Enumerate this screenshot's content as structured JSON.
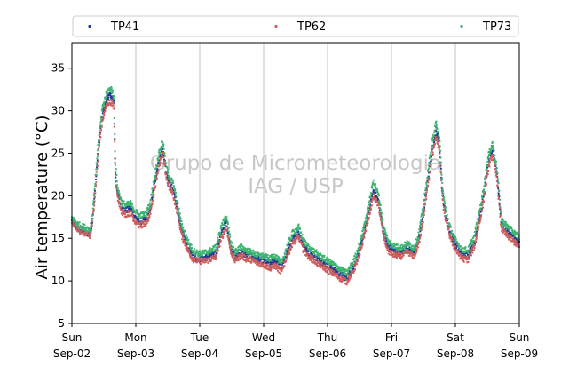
{
  "chart_data": {
    "type": "scatter",
    "ylabel": "Air temperature (°C)",
    "xlabel": "",
    "ylim": [
      5,
      38
    ],
    "yticks": [
      5,
      10,
      15,
      20,
      25,
      30,
      35
    ],
    "x_range": [
      "Sep-02 00:00",
      "Sep-09 00:00"
    ],
    "x_ticks": [
      {
        "day": "Sun",
        "date": "Sep-02"
      },
      {
        "day": "Mon",
        "date": "Sep-03"
      },
      {
        "day": "Tue",
        "date": "Sep-04"
      },
      {
        "day": "Wed",
        "date": "Sep-05"
      },
      {
        "day": "Thu",
        "date": "Sep-06"
      },
      {
        "day": "Fri",
        "date": "Sep-07"
      },
      {
        "day": "Sat",
        "date": "Sep-08"
      },
      {
        "day": "Sun",
        "date": "Sep-09"
      }
    ],
    "grid": "vertical lines at day ticks",
    "legend_placement": "top, above plot",
    "watermark": [
      "Grupo de Micrometeorologia",
      "IAG / USP"
    ],
    "x_unit_note": "x values are fractional days from Sep-02 00:00",
    "profile_TP41": [
      [
        0,
        17.0
      ],
      [
        0.1,
        16.1
      ],
      [
        0.2,
        15.8
      ],
      [
        0.28,
        15.4
      ],
      [
        0.32,
        17.0
      ],
      [
        0.36,
        20.5
      ],
      [
        0.42,
        26
      ],
      [
        0.48,
        29.5
      ],
      [
        0.55,
        31.6
      ],
      [
        0.62,
        31.8
      ],
      [
        0.66,
        30.8
      ],
      [
        0.68,
        22.5
      ],
      [
        0.72,
        20.2
      ],
      [
        0.78,
        18.6
      ],
      [
        0.85,
        18.3
      ],
      [
        0.92,
        18.5
      ],
      [
        0.98,
        17.6
      ],
      [
        1.05,
        17.0
      ],
      [
        1.15,
        17.1
      ],
      [
        1.22,
        18.2
      ],
      [
        1.28,
        20.8
      ],
      [
        1.35,
        23.8
      ],
      [
        1.42,
        25.6
      ],
      [
        1.48,
        22.5
      ],
      [
        1.52,
        21.6
      ],
      [
        1.58,
        20.8
      ],
      [
        1.65,
        18.5
      ],
      [
        1.72,
        15.8
      ],
      [
        1.82,
        14.0
      ],
      [
        1.9,
        12.9
      ],
      [
        2.0,
        12.6
      ],
      [
        2.12,
        12.8
      ],
      [
        2.25,
        13.2
      ],
      [
        2.35,
        15.8
      ],
      [
        2.42,
        17.0
      ],
      [
        2.48,
        14.0
      ],
      [
        2.55,
        12.8
      ],
      [
        2.65,
        13.4
      ],
      [
        2.72,
        13.0
      ],
      [
        2.8,
        12.9
      ],
      [
        2.9,
        12.5
      ],
      [
        3.0,
        12.4
      ],
      [
        3.1,
        12.1
      ],
      [
        3.18,
        12.5
      ],
      [
        3.28,
        11.4
      ],
      [
        3.35,
        13.0
      ],
      [
        3.45,
        14.9
      ],
      [
        3.55,
        15.6
      ],
      [
        3.62,
        14.2
      ],
      [
        3.68,
        13.5
      ],
      [
        3.8,
        12.8
      ],
      [
        3.95,
        12.0
      ],
      [
        4.1,
        11.3
      ],
      [
        4.22,
        10.7
      ],
      [
        4.3,
        10.3
      ],
      [
        4.4,
        11.5
      ],
      [
        4.5,
        13.5
      ],
      [
        4.62,
        17.3
      ],
      [
        4.72,
        20.6
      ],
      [
        4.8,
        19.3
      ],
      [
        4.88,
        15.5
      ],
      [
        4.95,
        14.0
      ],
      [
        5.05,
        13.5
      ],
      [
        5.15,
        13.3
      ],
      [
        5.25,
        13.8
      ],
      [
        5.35,
        13.3
      ],
      [
        5.42,
        14.6
      ],
      [
        5.5,
        18.0
      ],
      [
        5.58,
        22.5
      ],
      [
        5.64,
        25.5
      ],
      [
        5.7,
        27.8
      ],
      [
        5.75,
        26.0
      ],
      [
        5.8,
        20.0
      ],
      [
        5.85,
        17.5
      ],
      [
        5.92,
        15.6
      ],
      [
        6.0,
        14.2
      ],
      [
        6.1,
        13.1
      ],
      [
        6.2,
        13.0
      ],
      [
        6.3,
        14.6
      ],
      [
        6.42,
        19.0
      ],
      [
        6.52,
        24.0
      ],
      [
        6.58,
        25.5
      ],
      [
        6.65,
        22.6
      ],
      [
        6.72,
        16.6
      ],
      [
        6.8,
        15.9
      ],
      [
        6.9,
        15.2
      ],
      [
        7.0,
        14.4
      ]
    ],
    "profile_TP62": [
      [
        0,
        16.9
      ],
      [
        0.1,
        16.0
      ],
      [
        0.2,
        15.6
      ],
      [
        0.28,
        15.2
      ],
      [
        0.32,
        16.7
      ],
      [
        0.36,
        20.0
      ],
      [
        0.42,
        25.5
      ],
      [
        0.48,
        29.0
      ],
      [
        0.55,
        30.9
      ],
      [
        0.62,
        31.0
      ],
      [
        0.66,
        30.3
      ],
      [
        0.68,
        22.1
      ],
      [
        0.72,
        19.7
      ],
      [
        0.78,
        18.1
      ],
      [
        0.85,
        17.8
      ],
      [
        0.92,
        18.0
      ],
      [
        0.98,
        17.0
      ],
      [
        1.05,
        16.5
      ],
      [
        1.15,
        16.7
      ],
      [
        1.22,
        17.7
      ],
      [
        1.28,
        20.2
      ],
      [
        1.35,
        23.2
      ],
      [
        1.42,
        25.0
      ],
      [
        1.48,
        22.0
      ],
      [
        1.52,
        21.0
      ],
      [
        1.58,
        20.3
      ],
      [
        1.65,
        18.0
      ],
      [
        1.72,
        15.3
      ],
      [
        1.82,
        13.5
      ],
      [
        1.9,
        12.5
      ],
      [
        2.0,
        12.3
      ],
      [
        2.12,
        12.4
      ],
      [
        2.25,
        12.8
      ],
      [
        2.35,
        15.2
      ],
      [
        2.42,
        16.3
      ],
      [
        2.48,
        13.6
      ],
      [
        2.55,
        12.4
      ],
      [
        2.65,
        13.0
      ],
      [
        2.72,
        12.6
      ],
      [
        2.8,
        12.5
      ],
      [
        2.9,
        12.1
      ],
      [
        3.0,
        11.9
      ],
      [
        3.1,
        11.5
      ],
      [
        3.18,
        11.8
      ],
      [
        3.28,
        11.0
      ],
      [
        3.35,
        12.6
      ],
      [
        3.45,
        14.4
      ],
      [
        3.55,
        15.1
      ],
      [
        3.62,
        13.7
      ],
      [
        3.68,
        13.0
      ],
      [
        3.8,
        12.3
      ],
      [
        3.95,
        11.5
      ],
      [
        4.1,
        10.8
      ],
      [
        4.22,
        10.2
      ],
      [
        4.3,
        9.9
      ],
      [
        4.4,
        11.1
      ],
      [
        4.5,
        13.0
      ],
      [
        4.62,
        16.8
      ],
      [
        4.72,
        20.0
      ],
      [
        4.8,
        18.8
      ],
      [
        4.88,
        15.0
      ],
      [
        4.95,
        13.5
      ],
      [
        5.05,
        13.0
      ],
      [
        5.15,
        12.9
      ],
      [
        5.25,
        13.4
      ],
      [
        5.35,
        12.9
      ],
      [
        5.42,
        14.1
      ],
      [
        5.5,
        17.4
      ],
      [
        5.58,
        21.8
      ],
      [
        5.64,
        24.8
      ],
      [
        5.7,
        27.0
      ],
      [
        5.75,
        25.3
      ],
      [
        5.8,
        19.4
      ],
      [
        5.85,
        17.0
      ],
      [
        5.92,
        15.1
      ],
      [
        6.0,
        13.7
      ],
      [
        6.1,
        12.6
      ],
      [
        6.2,
        12.5
      ],
      [
        6.3,
        14.1
      ],
      [
        6.42,
        18.4
      ],
      [
        6.52,
        23.4
      ],
      [
        6.58,
        24.9
      ],
      [
        6.65,
        22.0
      ],
      [
        6.72,
        16.1
      ],
      [
        6.8,
        15.4
      ],
      [
        6.9,
        14.7
      ],
      [
        7.0,
        14.0
      ]
    ],
    "profile_TP73": [
      [
        0,
        17.4
      ],
      [
        0.1,
        16.6
      ],
      [
        0.2,
        16.3
      ],
      [
        0.28,
        16.0
      ],
      [
        0.32,
        17.6
      ],
      [
        0.36,
        21.2
      ],
      [
        0.42,
        26.8
      ],
      [
        0.48,
        30.3
      ],
      [
        0.55,
        32.3
      ],
      [
        0.62,
        32.6
      ],
      [
        0.66,
        31.4
      ],
      [
        0.68,
        23.5
      ],
      [
        0.72,
        20.8
      ],
      [
        0.78,
        19.2
      ],
      [
        0.85,
        18.9
      ],
      [
        0.92,
        19.1
      ],
      [
        0.98,
        18.3
      ],
      [
        1.05,
        17.7
      ],
      [
        1.15,
        17.8
      ],
      [
        1.22,
        19.0
      ],
      [
        1.28,
        21.6
      ],
      [
        1.35,
        24.6
      ],
      [
        1.42,
        26.5
      ],
      [
        1.48,
        23.3
      ],
      [
        1.52,
        22.3
      ],
      [
        1.58,
        21.5
      ],
      [
        1.65,
        19.2
      ],
      [
        1.72,
        16.5
      ],
      [
        1.82,
        14.6
      ],
      [
        1.9,
        13.5
      ],
      [
        2.0,
        13.2
      ],
      [
        2.12,
        13.4
      ],
      [
        2.25,
        13.9
      ],
      [
        2.35,
        16.6
      ],
      [
        2.42,
        17.6
      ],
      [
        2.48,
        14.7
      ],
      [
        2.55,
        13.4
      ],
      [
        2.65,
        14.0
      ],
      [
        2.72,
        13.6
      ],
      [
        2.8,
        13.4
      ],
      [
        2.9,
        13.0
      ],
      [
        3.0,
        12.9
      ],
      [
        3.1,
        12.6
      ],
      [
        3.18,
        13.0
      ],
      [
        3.28,
        12.0
      ],
      [
        3.35,
        13.7
      ],
      [
        3.45,
        15.6
      ],
      [
        3.55,
        16.3
      ],
      [
        3.62,
        14.8
      ],
      [
        3.68,
        14.1
      ],
      [
        3.8,
        13.4
      ],
      [
        3.95,
        12.6
      ],
      [
        4.1,
        11.9
      ],
      [
        4.22,
        11.3
      ],
      [
        4.3,
        10.9
      ],
      [
        4.4,
        12.2
      ],
      [
        4.5,
        14.2
      ],
      [
        4.62,
        18.0
      ],
      [
        4.72,
        21.8
      ],
      [
        4.8,
        20.0
      ],
      [
        4.88,
        16.2
      ],
      [
        4.95,
        14.6
      ],
      [
        5.05,
        14.1
      ],
      [
        5.15,
        13.9
      ],
      [
        5.25,
        14.4
      ],
      [
        5.35,
        13.9
      ],
      [
        5.42,
        15.2
      ],
      [
        5.5,
        18.8
      ],
      [
        5.58,
        23.3
      ],
      [
        5.64,
        26.4
      ],
      [
        5.7,
        28.6
      ],
      [
        5.75,
        26.8
      ],
      [
        5.8,
        20.7
      ],
      [
        5.85,
        18.2
      ],
      [
        5.92,
        16.2
      ],
      [
        6.0,
        14.8
      ],
      [
        6.1,
        13.7
      ],
      [
        6.2,
        13.6
      ],
      [
        6.3,
        15.3
      ],
      [
        6.42,
        19.8
      ],
      [
        6.52,
        24.8
      ],
      [
        6.58,
        26.2
      ],
      [
        6.65,
        23.3
      ],
      [
        6.72,
        17.2
      ],
      [
        6.8,
        16.5
      ],
      [
        6.9,
        15.8
      ],
      [
        7.0,
        15.1
      ]
    ],
    "series": [
      {
        "name": "TP41",
        "color": "#1f3a93",
        "profile": "profile_TP41"
      },
      {
        "name": "TP62",
        "color": "#cd5c5c",
        "profile": "profile_TP62"
      },
      {
        "name": "TP73",
        "color": "#3cb371",
        "profile": "profile_TP73"
      }
    ]
  }
}
